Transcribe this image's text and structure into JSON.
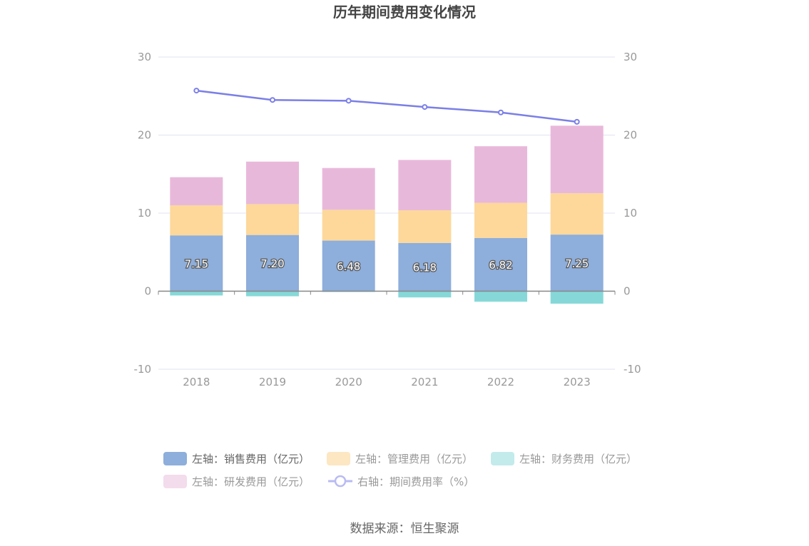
{
  "chart_data": {
    "type": "bar",
    "title": "历年期间费用变化情况",
    "categories": [
      "2018",
      "2019",
      "2020",
      "2021",
      "2022",
      "2023"
    ],
    "y_left": {
      "min": -10,
      "max": 30,
      "ticks": [
        -10,
        0,
        10,
        20,
        30
      ]
    },
    "y_right": {
      "min": -10,
      "max": 30,
      "ticks": [
        -10,
        0,
        10,
        20,
        30
      ]
    },
    "grid": true,
    "stacked": true,
    "series": [
      {
        "name": "左轴：销售费用（亿元）",
        "axis": "left",
        "kind": "bar",
        "color": "#8eaedb",
        "values": [
          7.15,
          7.2,
          6.48,
          6.18,
          6.82,
          7.25
        ],
        "show_labels": true
      },
      {
        "name": "左轴：管理费用（亿元）",
        "axis": "left",
        "kind": "bar",
        "color": "#fdd89a",
        "values": [
          3.85,
          3.95,
          3.95,
          4.18,
          4.5,
          5.3
        ]
      },
      {
        "name": "左轴：财务费用（亿元）",
        "axis": "left",
        "kind": "bar",
        "color": "#86d8d8",
        "values": [
          -0.55,
          -0.65,
          -0.1,
          -0.8,
          -1.35,
          -1.6
        ]
      },
      {
        "name": "左轴：研发费用（亿元）",
        "axis": "left",
        "kind": "bar",
        "color": "#e8b8da",
        "values": [
          3.6,
          5.45,
          5.35,
          6.45,
          7.25,
          8.65
        ]
      },
      {
        "name": "右轴：期间费用率（%）",
        "axis": "right",
        "kind": "line",
        "color": "#7b7fe6",
        "values": [
          25.7,
          24.5,
          24.4,
          23.6,
          22.9,
          21.7
        ]
      }
    ],
    "legend_position": "bottom"
  },
  "legend_labels": {
    "sales": "左轴：销售费用（亿元）",
    "admin": "左轴：管理费用（亿元）",
    "finance": "左轴：财务费用（亿元）",
    "rnd": "左轴：研发费用（亿元）",
    "rate": "右轴：期间费用率（%）"
  },
  "source": "数据来源：恒生聚源"
}
